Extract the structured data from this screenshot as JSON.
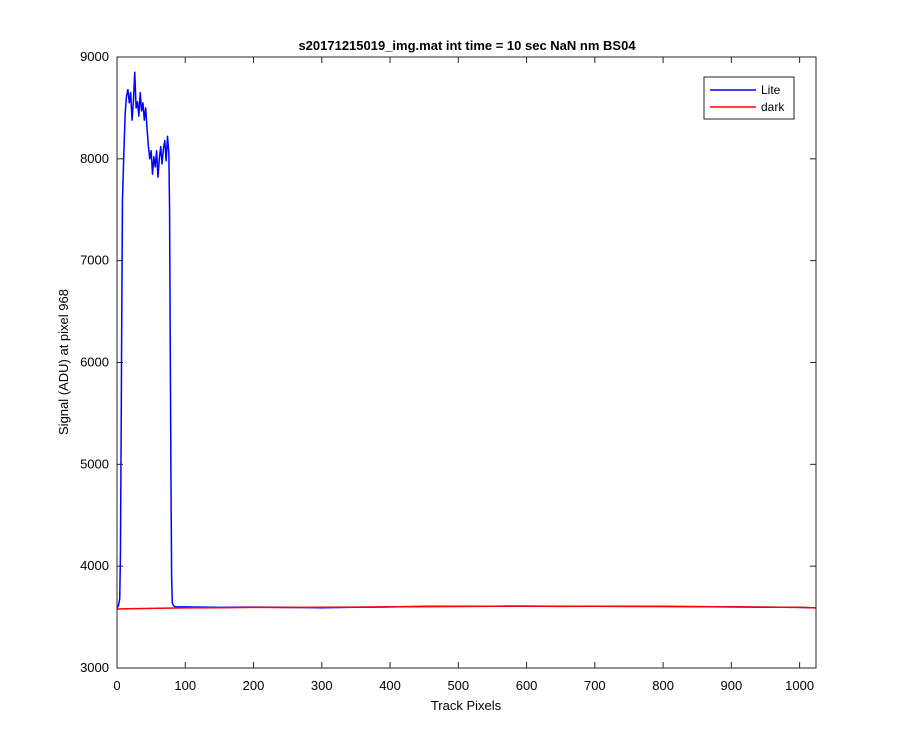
{
  "chart_data": {
    "type": "line",
    "title": "s20171215019_img.mat int time = 10 sec  NaN nm BS04",
    "xlabel": "Track Pixels",
    "ylabel": "Signal (ADU) at pixel 968",
    "xlim": [
      0,
      1024
    ],
    "ylim": [
      3000,
      9000
    ],
    "xticks": [
      0,
      100,
      200,
      300,
      400,
      500,
      600,
      700,
      800,
      900,
      1000
    ],
    "yticks": [
      3000,
      4000,
      5000,
      6000,
      7000,
      8000,
      9000
    ],
    "grid": false,
    "legend": {
      "placement": "top-right",
      "entries": [
        "Lite",
        "dark"
      ]
    },
    "series": [
      {
        "name": "Lite",
        "color": "#0000ff",
        "points": [
          [
            0,
            3590
          ],
          [
            2,
            3610
          ],
          [
            4,
            3680
          ],
          [
            5,
            4100
          ],
          [
            6,
            5200
          ],
          [
            7,
            6500
          ],
          [
            8,
            7600
          ],
          [
            10,
            8050
          ],
          [
            12,
            8450
          ],
          [
            14,
            8620
          ],
          [
            16,
            8680
          ],
          [
            18,
            8550
          ],
          [
            20,
            8650
          ],
          [
            22,
            8380
          ],
          [
            24,
            8560
          ],
          [
            26,
            8850
          ],
          [
            28,
            8500
          ],
          [
            30,
            8560
          ],
          [
            32,
            8420
          ],
          [
            34,
            8650
          ],
          [
            36,
            8470
          ],
          [
            38,
            8550
          ],
          [
            40,
            8380
          ],
          [
            42,
            8500
          ],
          [
            44,
            8300
          ],
          [
            46,
            8120
          ],
          [
            48,
            8000
          ],
          [
            50,
            8080
          ],
          [
            52,
            7850
          ],
          [
            54,
            8020
          ],
          [
            56,
            7920
          ],
          [
            58,
            8080
          ],
          [
            60,
            7820
          ],
          [
            62,
            8000
          ],
          [
            64,
            8120
          ],
          [
            66,
            7950
          ],
          [
            68,
            8100
          ],
          [
            70,
            8180
          ],
          [
            72,
            7980
          ],
          [
            74,
            8220
          ],
          [
            76,
            8050
          ],
          [
            77,
            7500
          ],
          [
            78,
            6200
          ],
          [
            79,
            4900
          ],
          [
            80,
            3900
          ],
          [
            81,
            3640
          ],
          [
            83,
            3610
          ],
          [
            86,
            3600
          ],
          [
            100,
            3600
          ],
          [
            150,
            3595
          ],
          [
            200,
            3598
          ],
          [
            250,
            3595
          ],
          [
            300,
            3592
          ],
          [
            350,
            3597
          ],
          [
            400,
            3600
          ],
          [
            450,
            3605
          ],
          [
            500,
            3605
          ],
          [
            550,
            3607
          ],
          [
            600,
            3608
          ],
          [
            650,
            3605
          ],
          [
            700,
            3607
          ],
          [
            750,
            3605
          ],
          [
            800,
            3605
          ],
          [
            850,
            3603
          ],
          [
            900,
            3600
          ],
          [
            950,
            3598
          ],
          [
            1000,
            3595
          ],
          [
            1024,
            3590
          ]
        ]
      },
      {
        "name": "dark",
        "color": "#ff0000",
        "points": [
          [
            0,
            3580
          ],
          [
            50,
            3585
          ],
          [
            100,
            3590
          ],
          [
            150,
            3592
          ],
          [
            200,
            3595
          ],
          [
            250,
            3594
          ],
          [
            300,
            3596
          ],
          [
            350,
            3598
          ],
          [
            400,
            3600
          ],
          [
            450,
            3603
          ],
          [
            500,
            3605
          ],
          [
            550,
            3607
          ],
          [
            600,
            3608
          ],
          [
            650,
            3606
          ],
          [
            700,
            3607
          ],
          [
            750,
            3605
          ],
          [
            800,
            3604
          ],
          [
            850,
            3602
          ],
          [
            900,
            3600
          ],
          [
            950,
            3598
          ],
          [
            1000,
            3595
          ],
          [
            1024,
            3590
          ]
        ]
      }
    ]
  }
}
